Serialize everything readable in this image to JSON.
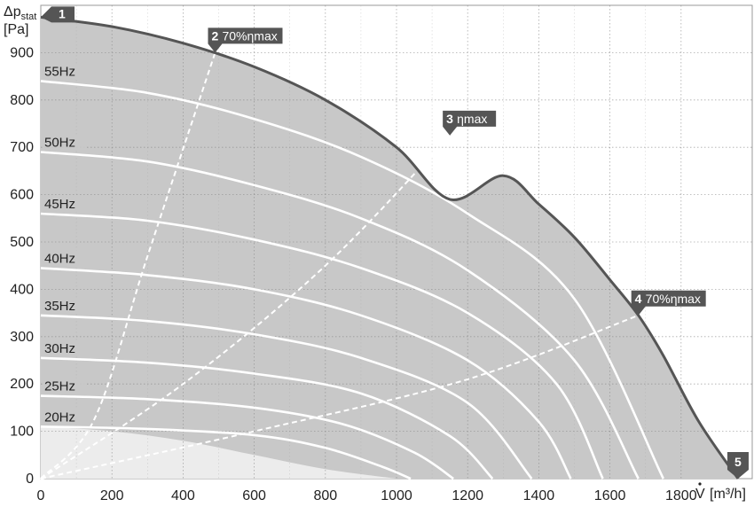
{
  "chart_data": {
    "type": "line",
    "title": "",
    "ylabel": "Δp",
    "ylabel_sub": "stat",
    "yunit": "[Pa]",
    "xlabel": "V",
    "xunit": "[m³/h]",
    "xlim": [
      0,
      2000
    ],
    "ylim": [
      0,
      1000
    ],
    "x_ticks": [
      0,
      200,
      400,
      600,
      800,
      1000,
      1200,
      1400,
      1600,
      1800
    ],
    "x_tick_labels": [
      "0",
      "200",
      "400",
      "600",
      "800",
      "1000",
      "1200",
      "1400",
      "1600",
      "1800"
    ],
    "y_ticks": [
      0,
      100,
      200,
      300,
      400,
      500,
      600,
      700,
      800,
      900
    ],
    "y_tick_labels": [
      "0",
      "100",
      "200",
      "300",
      "400",
      "500",
      "600",
      "700",
      "800",
      "900"
    ],
    "grid": true,
    "colors": {
      "area": "#c8c8c8",
      "light_area": "#ececec",
      "envelope": "#555555",
      "curve": "#ffffff",
      "marker": "#555555"
    },
    "envelope": {
      "x": [
        0,
        200,
        400,
        600,
        800,
        1000,
        1150,
        1300,
        1400,
        1500,
        1600,
        1680,
        1750,
        1850,
        1960
      ],
      "y": [
        975,
        955,
        920,
        870,
        800,
        700,
        590,
        640,
        580,
        510,
        420,
        345,
        260,
        120,
        0
      ]
    },
    "speed_curves": [
      {
        "name": "55Hz",
        "label": "55Hz",
        "x": [
          0,
          300,
          600,
          900,
          1200,
          1500,
          1750
        ],
        "y": [
          840,
          815,
          760,
          680,
          560,
          380,
          0
        ]
      },
      {
        "name": "50Hz",
        "label": "50Hz",
        "x": [
          0,
          300,
          600,
          900,
          1200,
          1500,
          1680
        ],
        "y": [
          690,
          670,
          620,
          550,
          440,
          250,
          0
        ]
      },
      {
        "name": "45Hz",
        "label": "45Hz",
        "x": [
          0,
          300,
          600,
          900,
          1200,
          1450,
          1580
        ],
        "y": [
          560,
          545,
          505,
          445,
          350,
          200,
          0
        ]
      },
      {
        "name": "40Hz",
        "label": "40Hz",
        "x": [
          0,
          300,
          600,
          900,
          1200,
          1400,
          1490
        ],
        "y": [
          445,
          430,
          400,
          345,
          250,
          120,
          0
        ]
      },
      {
        "name": "35Hz",
        "label": "35Hz",
        "x": [
          0,
          300,
          600,
          900,
          1200,
          1380
        ],
        "y": [
          345,
          333,
          305,
          255,
          160,
          0
        ]
      },
      {
        "name": "30Hz",
        "label": "30Hz",
        "x": [
          0,
          300,
          600,
          900,
          1150,
          1270
        ],
        "y": [
          255,
          245,
          222,
          180,
          90,
          0
        ]
      },
      {
        "name": "25Hz",
        "label": "25Hz",
        "x": [
          0,
          300,
          600,
          850,
          1050,
          1160
        ],
        "y": [
          175,
          168,
          150,
          115,
          55,
          0
        ]
      },
      {
        "name": "20Hz",
        "label": "20Hz",
        "x": [
          0,
          300,
          600,
          800,
          960,
          1040
        ],
        "y": [
          110,
          105,
          92,
          65,
          25,
          0
        ]
      }
    ],
    "light_region": {
      "x": [
        0,
        200,
        400,
        600,
        800,
        1000
      ],
      "y": [
        110,
        100,
        80,
        50,
        20,
        0
      ]
    },
    "efficiency_lines": [
      {
        "name": "70%ηmax (low flow)",
        "x": [
          0,
          150,
          300,
          490
        ],
        "y": [
          0,
          125,
          470,
          900
        ]
      },
      {
        "name": "ηmax",
        "x": [
          0,
          400,
          800,
          1150
        ],
        "y": [
          0,
          200,
          450,
          725
        ]
      },
      {
        "name": "70%ηmax (high flow)",
        "x": [
          0,
          600,
          1200,
          1680
        ],
        "y": [
          0,
          100,
          210,
          345
        ]
      }
    ],
    "markers": [
      {
        "num": "1",
        "text": "",
        "x": 0,
        "y": 975,
        "anchor": "left"
      },
      {
        "num": "2",
        "text": "70%ηmax",
        "x": 490,
        "y": 900,
        "anchor": "top"
      },
      {
        "num": "3",
        "text": "ηmax",
        "x": 1150,
        "y": 725,
        "anchor": "top"
      },
      {
        "num": "4",
        "text": "70%ηmax",
        "x": 1680,
        "y": 345,
        "anchor": "top"
      },
      {
        "num": "5",
        "text": "",
        "x": 1960,
        "y": 0,
        "anchor": "bottom"
      }
    ]
  }
}
